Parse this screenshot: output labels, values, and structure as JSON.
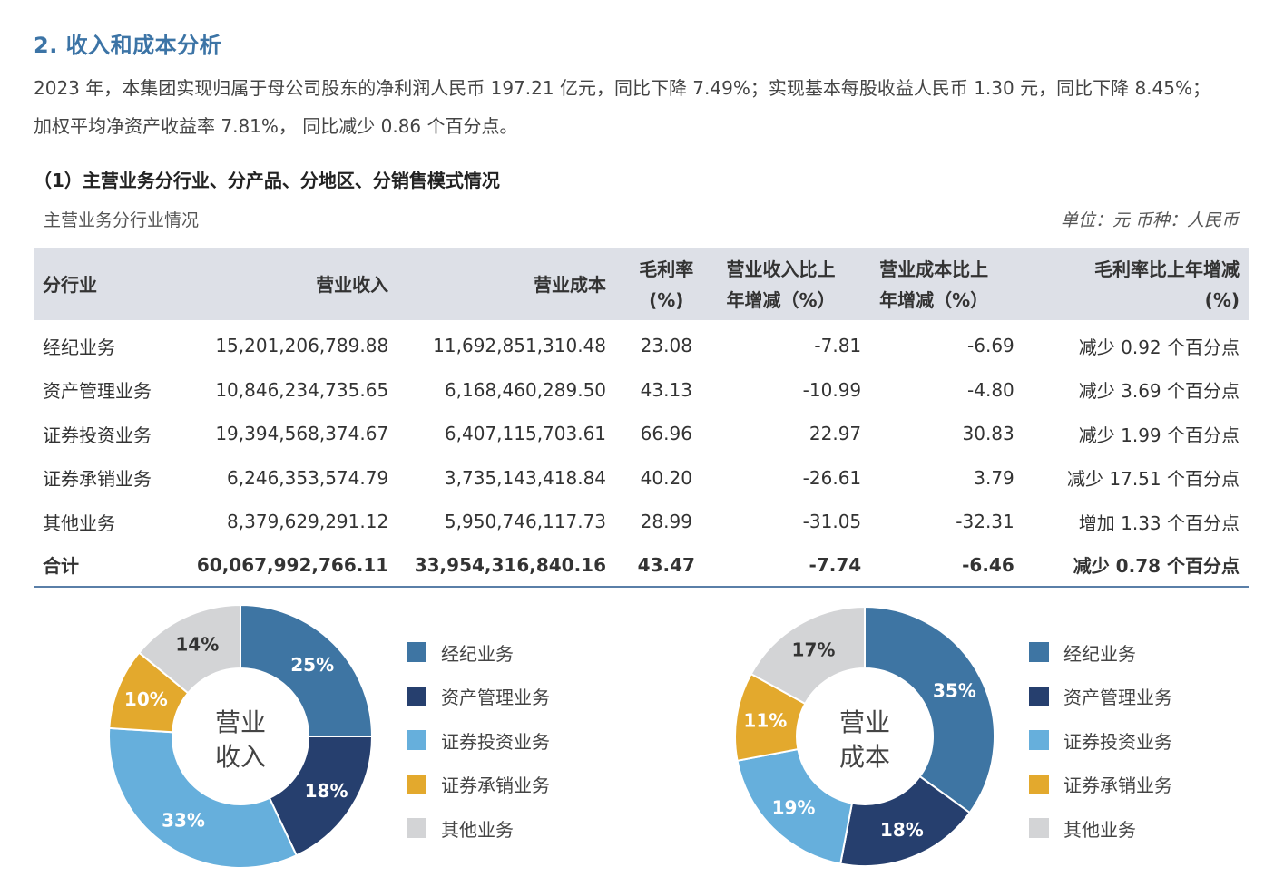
{
  "section": {
    "title": "2. 收入和成本分析",
    "para1": "2023 年，本集团实现归属于母公司股东的净利润人民币 197.21 亿元，同比下降 7.49%；实现基本每股收益人民币 1.30 元，同比下降 8.45%；",
    "para2": "加权平均净资产收益率 7.81%， 同比减少 0.86 个百分点。"
  },
  "subsection": {
    "title": "（1）主营业务分行业、分产品、分地区、分销售模式情况",
    "table_caption": "主营业务分行业情况",
    "unit": "单位：元  币种：人民币"
  },
  "table": {
    "headers": [
      "分行业",
      "营业收入",
      "营业成本",
      "毛利率",
      "(%)",
      "营业收入比上",
      "年增减（%）",
      "营业成本比上",
      "年增减（%）",
      "毛利率比上年增减",
      "(%)"
    ],
    "rows": [
      [
        "经纪业务",
        "15,201,206,789.88",
        "11,692,851,310.48",
        "23.08",
        "-7.81",
        "-6.69",
        "减少 0.92 个百分点"
      ],
      [
        "资产管理业务",
        "10,846,234,735.65",
        "6,168,460,289.50",
        "43.13",
        "-10.99",
        "-4.80",
        "减少 3.69 个百分点"
      ],
      [
        "证券投资业务",
        "19,394,568,374.67",
        "6,407,115,703.61",
        "66.96",
        "22.97",
        "30.83",
        "减少 1.99 个百分点"
      ],
      [
        "证券承销业务",
        "6,246,353,574.79",
        "3,735,143,418.84",
        "40.20",
        "-26.61",
        "3.79",
        "减少 17.51 个百分点"
      ],
      [
        "其他业务",
        "8,379,629,291.12",
        "5,950,746,117.73",
        "28.99",
        "-31.05",
        "-32.31",
        "增加 1.33 个百分点"
      ]
    ],
    "total": [
      "合计",
      "60,067,992,766.11",
      "33,954,316,840.16",
      "43.47",
      "-7.74",
      "-6.46",
      "减少 0.78 个百分点"
    ]
  },
  "chart_data": [
    {
      "type": "pie",
      "donut": true,
      "center_label": [
        "营业",
        "收入"
      ],
      "categories": [
        "经纪业务",
        "资产管理业务",
        "证券投资业务",
        "证券承销业务",
        "其他业务"
      ],
      "values": [
        25,
        18,
        33,
        10,
        14
      ],
      "labels": [
        "25%",
        "18%",
        "33%",
        "10%",
        "14%"
      ],
      "colors": [
        "#3e75a3",
        "#263f6e",
        "#66afdc",
        "#e3a92d",
        "#d3d4d6"
      ],
      "legend_position": "right"
    },
    {
      "type": "pie",
      "donut": true,
      "center_label": [
        "营业",
        "成本"
      ],
      "categories": [
        "经纪业务",
        "资产管理业务",
        "证券投资业务",
        "证券承销业务",
        "其他业务"
      ],
      "values": [
        35,
        18,
        19,
        11,
        17
      ],
      "labels": [
        "35%",
        "18%",
        "19%",
        "11%",
        "17%"
      ],
      "colors": [
        "#3e75a3",
        "#263f6e",
        "#66afdc",
        "#e3a92d",
        "#d3d4d6"
      ],
      "legend_position": "right"
    }
  ]
}
